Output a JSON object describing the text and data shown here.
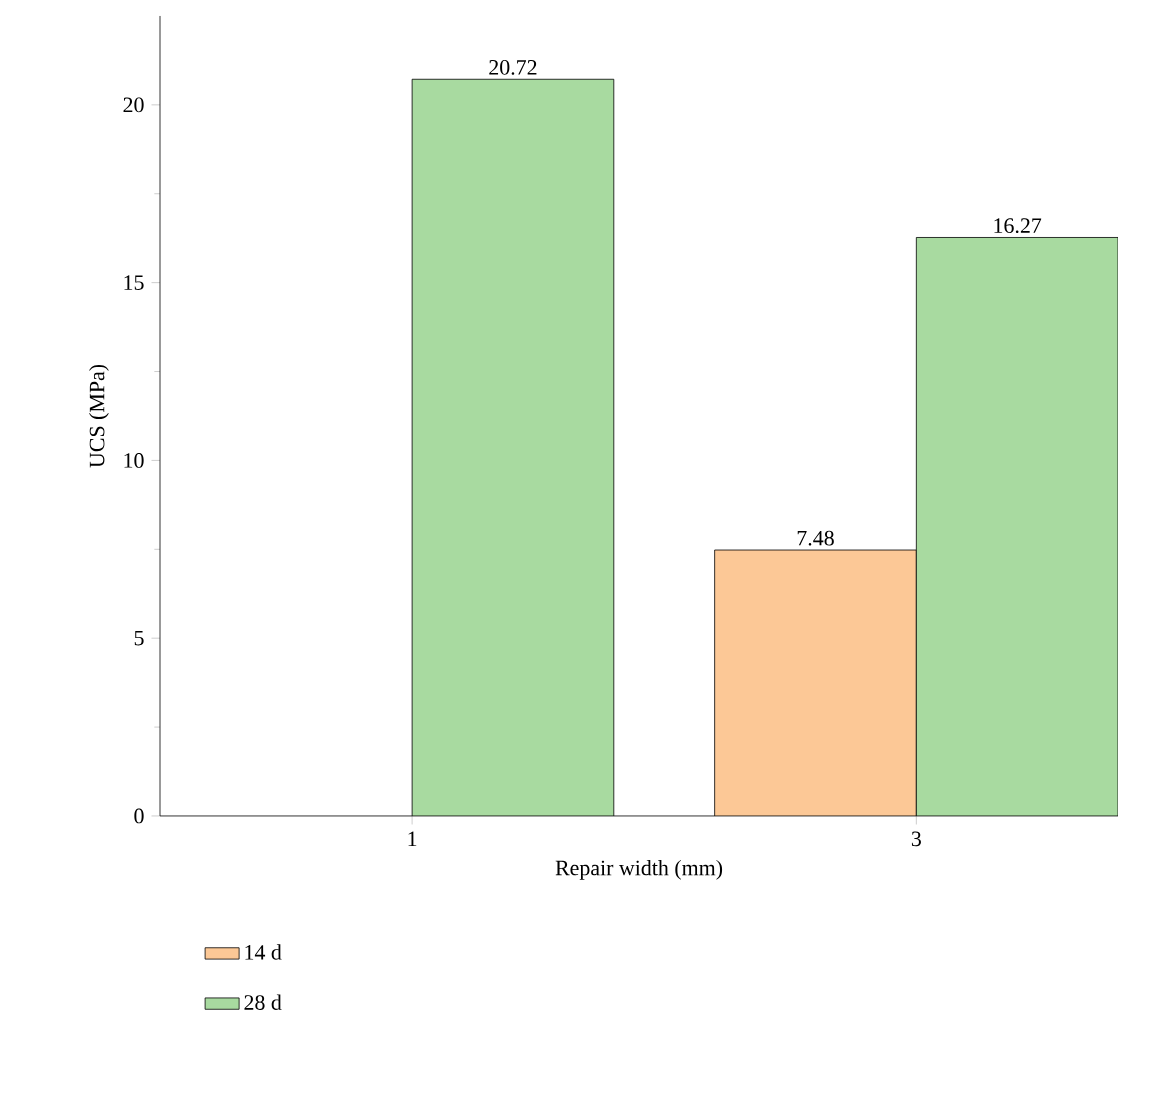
{
  "chart_data": {
    "type": "bar",
    "xlabel": "Repair width (mm)",
    "ylabel": "UCS (MPa)",
    "categories": [
      "1",
      "3"
    ],
    "series": [
      {
        "name": "14 d",
        "color": "#fcc896",
        "values": [
          null,
          7.48
        ]
      },
      {
        "name": "28 d",
        "color": "#a8daa0",
        "values": [
          20.72,
          16.27
        ]
      }
    ],
    "ylim": [
      0,
      22.5
    ],
    "yticks": [
      0,
      5,
      10,
      15,
      20
    ],
    "data_labels": true,
    "legend": "bottom left",
    "grid": false
  }
}
